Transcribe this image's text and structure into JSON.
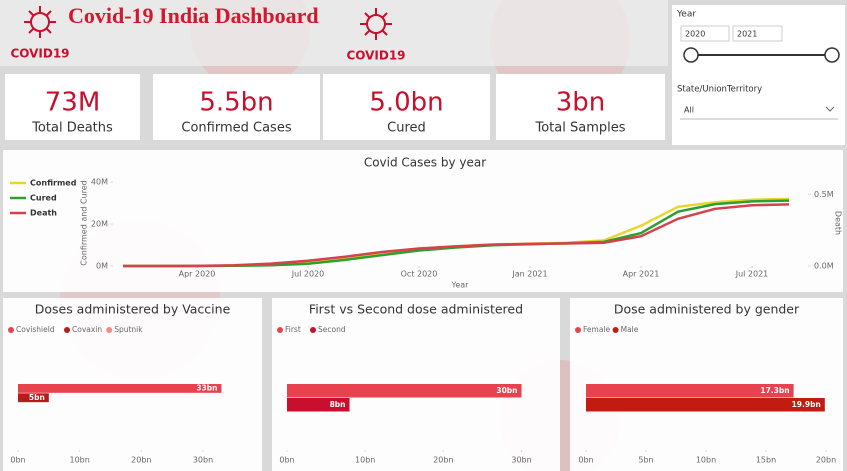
{
  "header": {
    "title": "Covid-19 India Dashboard",
    "logo_text": "COVID19"
  },
  "filters": {
    "year": {
      "label": "Year",
      "start": "2020",
      "end": "2021"
    },
    "state": {
      "label": "State/UnionTerritory",
      "value": "All"
    }
  },
  "kpis": [
    {
      "value": "73M",
      "label": "Total Deaths"
    },
    {
      "value": "5.5bn",
      "label": "Confirmed Cases"
    },
    {
      "value": "5.0bn",
      "label": "Cured"
    },
    {
      "value": "3bn",
      "label": "Total Samples"
    }
  ],
  "chart_data": [
    {
      "type": "line",
      "title": "Covid Cases by year",
      "x_label": "Year",
      "y_label": "Confirmed and Cured",
      "y2_label": "Death",
      "legend": "top-left",
      "x": [
        "2020-02",
        "2020-03",
        "2020-04",
        "2020-05",
        "2020-06",
        "2020-07",
        "2020-08",
        "2020-09",
        "2020-10",
        "2020-11",
        "2020-12",
        "2021-01",
        "2021-02",
        "2021-03",
        "2021-04",
        "2021-05",
        "2021-06",
        "2021-07",
        "2021-08"
      ],
      "xlim": [
        "2020-01",
        "2021-09"
      ],
      "xticks": [
        {
          "value": "2020-04",
          "label": "Apr 2020"
        },
        {
          "value": "2020-07",
          "label": "Jul 2020"
        },
        {
          "value": "2020-10",
          "label": "Oct 2020"
        },
        {
          "value": "2021-01",
          "label": "Jan 2021"
        },
        {
          "value": "2021-04",
          "label": "Apr 2021"
        },
        {
          "value": "2021-07",
          "label": "Jul 2021"
        }
      ],
      "ylim": [
        0,
        41
      ],
      "yticks": [
        {
          "value": 0,
          "label": "0M"
        },
        {
          "value": 20,
          "label": "20M"
        },
        {
          "value": 40,
          "label": "40M"
        }
      ],
      "y2lim": [
        0,
        0.6
      ],
      "y2ticks": [
        {
          "value": 0,
          "label": "0.0M"
        },
        {
          "value": 0.5,
          "label": "0.5M"
        }
      ],
      "series": [
        {
          "name": "Confirmed",
          "color": "#e8d62c",
          "values": [
            0,
            0.001,
            0.03,
            0.19,
            0.58,
            1.7,
            3.7,
            6.3,
            8.2,
            9.4,
            10.3,
            10.7,
            11.1,
            12.2,
            19.2,
            28.2,
            30.4,
            31.6,
            32.0
          ]
        },
        {
          "name": "Cured",
          "color": "#2e9e2e",
          "values": [
            0,
            0,
            0.007,
            0.09,
            0.35,
            1.1,
            2.9,
            5.2,
            7.4,
            8.8,
            9.9,
            10.4,
            10.8,
            11.5,
            15.7,
            25.9,
            29.5,
            30.8,
            31.2
          ]
        },
        {
          "name": "Death",
          "color": "#d9404d",
          "axis": "y2",
          "values": [
            0,
            0,
            0.001,
            0.005,
            0.017,
            0.036,
            0.065,
            0.098,
            0.122,
            0.137,
            0.149,
            0.154,
            0.157,
            0.162,
            0.208,
            0.329,
            0.399,
            0.424,
            0.43
          ]
        }
      ]
    },
    {
      "type": "bar",
      "orientation": "horizontal",
      "title": "Doses administered by Vaccine",
      "categories": [
        null
      ],
      "xlim": [
        0,
        36
      ],
      "xticks": [
        {
          "value": 0,
          "label": "0bn"
        },
        {
          "value": 10,
          "label": "10bn"
        },
        {
          "value": 20,
          "label": "20bn"
        },
        {
          "value": 30,
          "label": "30bn"
        }
      ],
      "series": [
        {
          "name": "Covishield",
          "color": "#e8424f",
          "values": [
            33
          ],
          "value_labels": [
            "33bn"
          ]
        },
        {
          "name": "Covaxin",
          "color": "#b71c1c",
          "values": [
            5
          ],
          "value_labels": [
            "5bn"
          ]
        },
        {
          "name": "Sputnik",
          "color": "#f08a8a",
          "values": [
            0
          ],
          "value_labels": [
            null
          ]
        }
      ]
    },
    {
      "type": "bar",
      "orientation": "horizontal",
      "title": "First vs Second dose administered",
      "categories": [
        null
      ],
      "xlim": [
        0,
        33
      ],
      "xticks": [
        {
          "value": 0,
          "label": "0bn"
        },
        {
          "value": 10,
          "label": "10bn"
        },
        {
          "value": 20,
          "label": "20bn"
        },
        {
          "value": 30,
          "label": "30bn"
        }
      ],
      "series": [
        {
          "name": "First",
          "color": "#e8424f",
          "values": [
            30
          ],
          "value_labels": [
            "30bn"
          ]
        },
        {
          "name": "Second",
          "color": "#c8102e",
          "values": [
            8
          ],
          "value_labels": [
            "8bn"
          ]
        }
      ]
    },
    {
      "type": "bar",
      "orientation": "horizontal",
      "title": "Dose administered by gender",
      "categories": [
        null
      ],
      "xlim": [
        0,
        20
      ],
      "xticks": [
        {
          "value": 0,
          "label": "0bn"
        },
        {
          "value": 5,
          "label": "5bn"
        },
        {
          "value": 10,
          "label": "10bn"
        },
        {
          "value": 15,
          "label": "15bn"
        },
        {
          "value": 20,
          "label": "20bn"
        }
      ],
      "series": [
        {
          "name": "Female",
          "color": "#e8424f",
          "values": [
            17.3
          ],
          "value_labels": [
            "17.3bn"
          ]
        },
        {
          "name": "Male",
          "color": "#c01c10",
          "values": [
            19.9
          ],
          "value_labels": [
            "19.9bn"
          ]
        }
      ]
    }
  ]
}
